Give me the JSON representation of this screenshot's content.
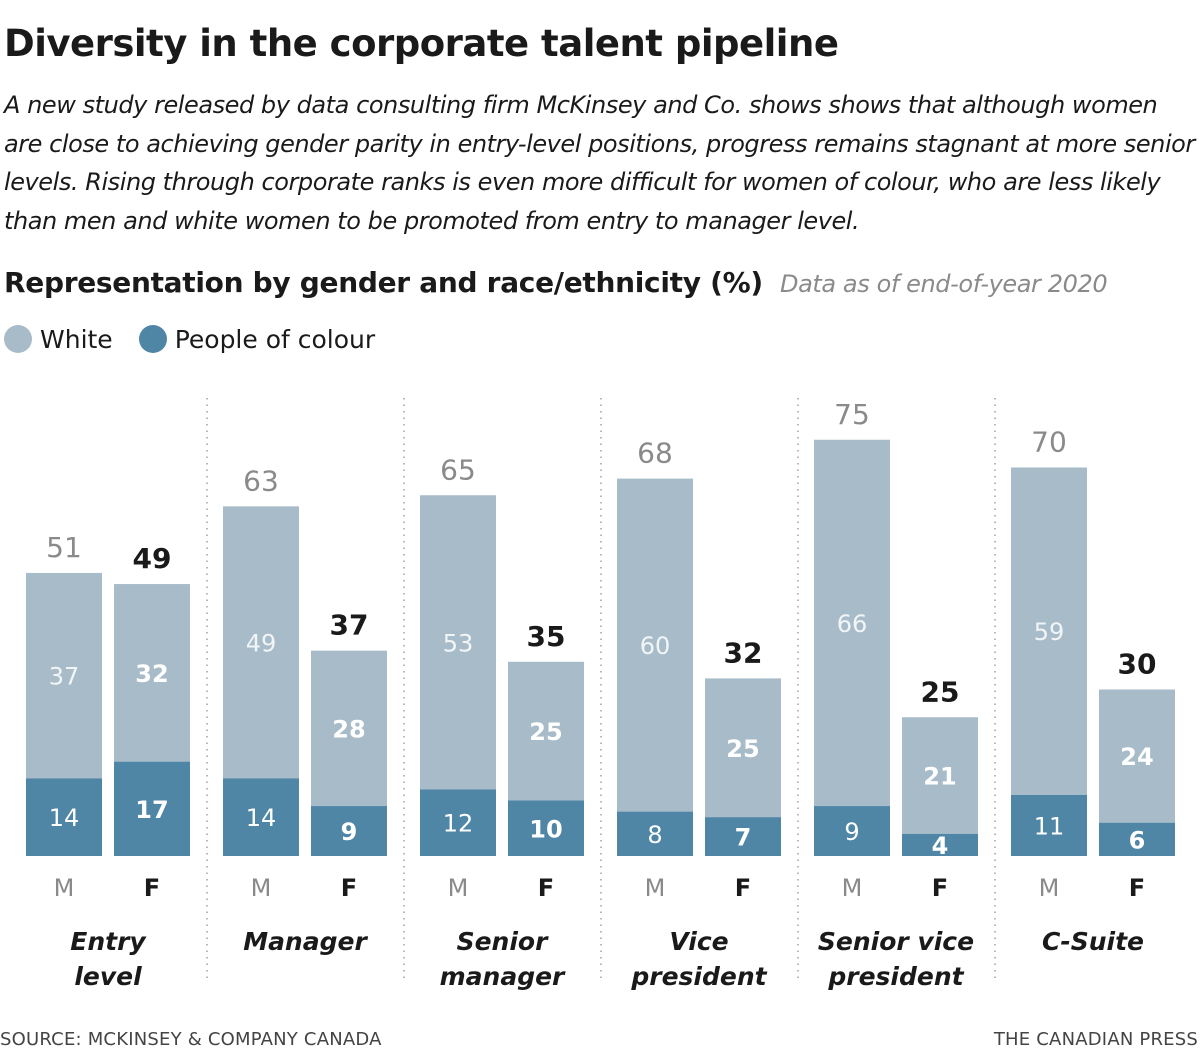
{
  "title": "Diversity in the corporate talent pipeline",
  "intro": "A new study released by data consulting firm McKinsey and Co. shows shows that although women are close to achieving gender parity in entry-level positions, progress remains stagnant at more senior levels. Rising through corporate ranks is even more difficult for women of colour, who are less likely than men and white women to be promoted from entry to manager level.",
  "subtitle": "Representation by gender and race/ethnicity (%)",
  "subnote": "Data as of end-of-year 2020",
  "legend": [
    {
      "label": "White",
      "color": "#a7bcc8"
    },
    {
      "label": "People of colour",
      "color": "#4f86a6"
    }
  ],
  "source": "SOURCE: MCKINSEY & COMPANY CANADA",
  "credit": "THE CANADIAN PRESS",
  "chart_data": {
    "type": "bar",
    "stacked": true,
    "ylim": [
      0,
      80
    ],
    "grid": false,
    "legend_position": "top-left",
    "colors": {
      "White": "#a7bcc8",
      "People of colour": "#4f86a6"
    },
    "groups": [
      {
        "label": "Entry level",
        "bars": [
          {
            "label": "M",
            "total": 51,
            "white": 37,
            "poc": 14
          },
          {
            "label": "F",
            "total": 49,
            "white": 32,
            "poc": 17
          }
        ]
      },
      {
        "label": "Manager",
        "bars": [
          {
            "label": "M",
            "total": 63,
            "white": 49,
            "poc": 14
          },
          {
            "label": "F",
            "total": 37,
            "white": 28,
            "poc": 9
          }
        ]
      },
      {
        "label": "Senior manager",
        "bars": [
          {
            "label": "M",
            "total": 65,
            "white": 53,
            "poc": 12
          },
          {
            "label": "F",
            "total": 35,
            "white": 25,
            "poc": 10
          }
        ]
      },
      {
        "label": "Vice president",
        "bars": [
          {
            "label": "M",
            "total": 68,
            "white": 60,
            "poc": 8
          },
          {
            "label": "F",
            "total": 32,
            "white": 25,
            "poc": 7
          }
        ]
      },
      {
        "label": "Senior vice president",
        "bars": [
          {
            "label": "M",
            "total": 75,
            "white": 66,
            "poc": 9
          },
          {
            "label": "F",
            "total": 25,
            "white": 21,
            "poc": 4
          }
        ]
      },
      {
        "label": "C-Suite",
        "bars": [
          {
            "label": "M",
            "total": 70,
            "white": 59,
            "poc": 11
          },
          {
            "label": "F",
            "total": 30,
            "white": 24,
            "poc": 6
          }
        ]
      }
    ],
    "category_lines": {
      "Entry level": [
        "Entry",
        "level"
      ],
      "Manager": [
        "Manager"
      ],
      "Senior manager": [
        "Senior",
        "manager"
      ],
      "Vice president": [
        "Vice",
        "president"
      ],
      "Senior vice president": [
        "Senior vice",
        "president"
      ],
      "C-Suite": [
        "C-Suite"
      ]
    }
  }
}
